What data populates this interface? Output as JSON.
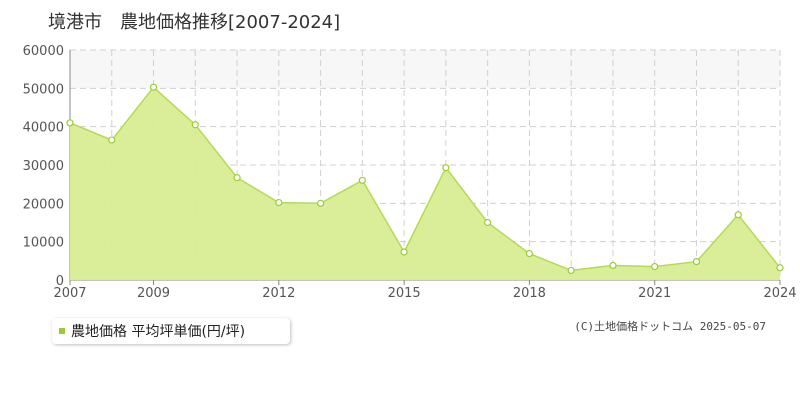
{
  "chart_data": {
    "type": "area",
    "title": "境港市　農地価格推移[2007-2024]",
    "x": [
      2007,
      2008,
      2009,
      2010,
      2011,
      2012,
      2013,
      2014,
      2015,
      2016,
      2017,
      2018,
      2019,
      2020,
      2021,
      2022,
      2023,
      2024
    ],
    "xticks": [
      2007,
      2009,
      2012,
      2015,
      2018,
      2021,
      2024
    ],
    "series": [
      {
        "name": "農地価格 平均坪単価(円/坪)",
        "values": [
          41000,
          36500,
          50300,
          40500,
          26700,
          20200,
          20000,
          26000,
          7300,
          29300,
          15000,
          6900,
          2500,
          3800,
          3500,
          4800,
          17000,
          3200
        ]
      }
    ],
    "ylim": [
      0,
      60000
    ],
    "yticks": [
      0,
      10000,
      20000,
      30000,
      40000,
      50000,
      60000
    ],
    "grid": true,
    "legend_position": "bottom-left",
    "colors": {
      "fill": "#d8ec92",
      "line": "#b5dc4a",
      "marker": "#9acd32"
    }
  },
  "legend": {
    "label": "農地価格 平均坪単価(円/坪)"
  },
  "credit": "(C)土地価格ドットコム 2025-05-07"
}
